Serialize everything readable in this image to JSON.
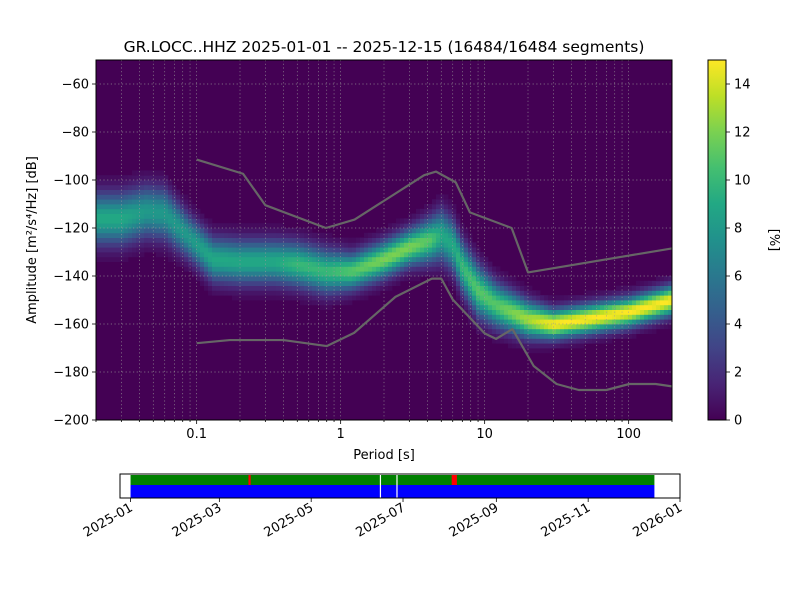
{
  "chart_data": [
    {
      "type": "heatmap",
      "title": "GR.LOCC..HHZ   2025-01-01 -- 2025-12-15  (16484/16484 segments)",
      "xlabel": "Period [s]",
      "ylabel": "Amplitude [m²/s⁴/Hz] [dB]",
      "x_scale": "log",
      "xlim": [
        0.02,
        200
      ],
      "ylim": [
        -200,
        -50
      ],
      "x_ticks": [
        0.1,
        1,
        10,
        100
      ],
      "x_tick_labels": [
        "0.1",
        "1",
        "10",
        "100"
      ],
      "y_ticks": [
        -200,
        -180,
        -160,
        -140,
        -120,
        -100,
        -80,
        -60
      ],
      "y_tick_labels": [
        "−200",
        "−180",
        "−160",
        "−140",
        "−120",
        "−100",
        "−80",
        "−60"
      ],
      "grid": true,
      "colormap": "viridis",
      "colorbar": {
        "label": "[%]",
        "range": [
          0,
          15
        ],
        "ticks": [
          0,
          2,
          4,
          6,
          8,
          10,
          12,
          14
        ],
        "tick_labels": [
          "0",
          "2",
          "4",
          "6",
          "8",
          "10",
          "12",
          "14"
        ]
      },
      "density_ridge": {
        "period": [
          0.02,
          0.03,
          0.045,
          0.06,
          0.09,
          0.13,
          0.2,
          0.35,
          0.5,
          0.8,
          1.2,
          2,
          3,
          4.2,
          5,
          6,
          7,
          9,
          12,
          20,
          30,
          50,
          100,
          200
        ],
        "amplitude_db": [
          -116,
          -116,
          -113,
          -114,
          -124,
          -133,
          -134,
          -134,
          -135,
          -138,
          -138,
          -133,
          -128,
          -125,
          -123,
          -127,
          -136,
          -146,
          -152,
          -158,
          -160,
          -158,
          -155,
          -150
        ],
        "peak_percent": [
          9,
          9,
          8,
          8,
          8,
          9,
          9,
          9,
          10,
          10,
          11,
          12,
          12,
          11,
          9,
          9,
          10,
          11,
          11,
          13,
          15,
          15,
          15,
          15
        ],
        "spread_db": [
          7,
          7,
          7,
          7,
          6,
          6,
          6,
          6,
          6,
          6,
          5,
          5,
          5,
          6,
          7,
          7,
          7,
          7,
          6,
          5,
          4,
          4,
          4,
          4
        ]
      },
      "noise_models": [
        {
          "period": [
            0.1,
            0.21,
            0.3,
            0.79,
            1.25,
            3.8,
            4.6,
            6.3,
            7.9,
            15.4,
            20,
            200
          ],
          "amplitude_db": [
            -91.5,
            -97.4,
            -110.5,
            -120,
            -116.5,
            -98,
            -96.5,
            -101,
            -113.5,
            -120,
            -138.5,
            -128.5
          ],
          "color": "#666666"
        },
        {
          "period": [
            0.1,
            0.17,
            0.4,
            0.8,
            1.24,
            2.4,
            4.3,
            5,
            6,
            10,
            12,
            15.6,
            21.9,
            31.6,
            45,
            70,
            101,
            154,
            200
          ],
          "amplitude_db": [
            -168,
            -166.7,
            -166.7,
            -169.2,
            -163.7,
            -148.7,
            -141.1,
            -141.1,
            -149.8,
            -163.9,
            -166.2,
            -162.1,
            -177.5,
            -185,
            -187.5,
            -187.5,
            -185,
            -185,
            -186
          ],
          "color": "#666666"
        }
      ]
    },
    {
      "type": "timeline",
      "x_ticks": [
        "2025-01",
        "2025-03",
        "2025-05",
        "2025-07",
        "2025-09",
        "2025-11",
        "2026-01"
      ],
      "xlim": [
        "2024-12-25",
        "2026-01-01"
      ],
      "data_available": {
        "start": "2025-01-01",
        "end": "2025-12-15",
        "gaps": [
          "2025-06-16",
          "2025-06-27"
        ],
        "color": "#0000ff"
      },
      "used_segments": {
        "start": "2025-01-01",
        "end": "2025-12-15",
        "color": "#008000",
        "red_marks": [
          "2025-03-21",
          "2025-08-03",
          "2025-08-04",
          "2025-08-05"
        ],
        "mark_color": "#ff0000"
      }
    }
  ]
}
